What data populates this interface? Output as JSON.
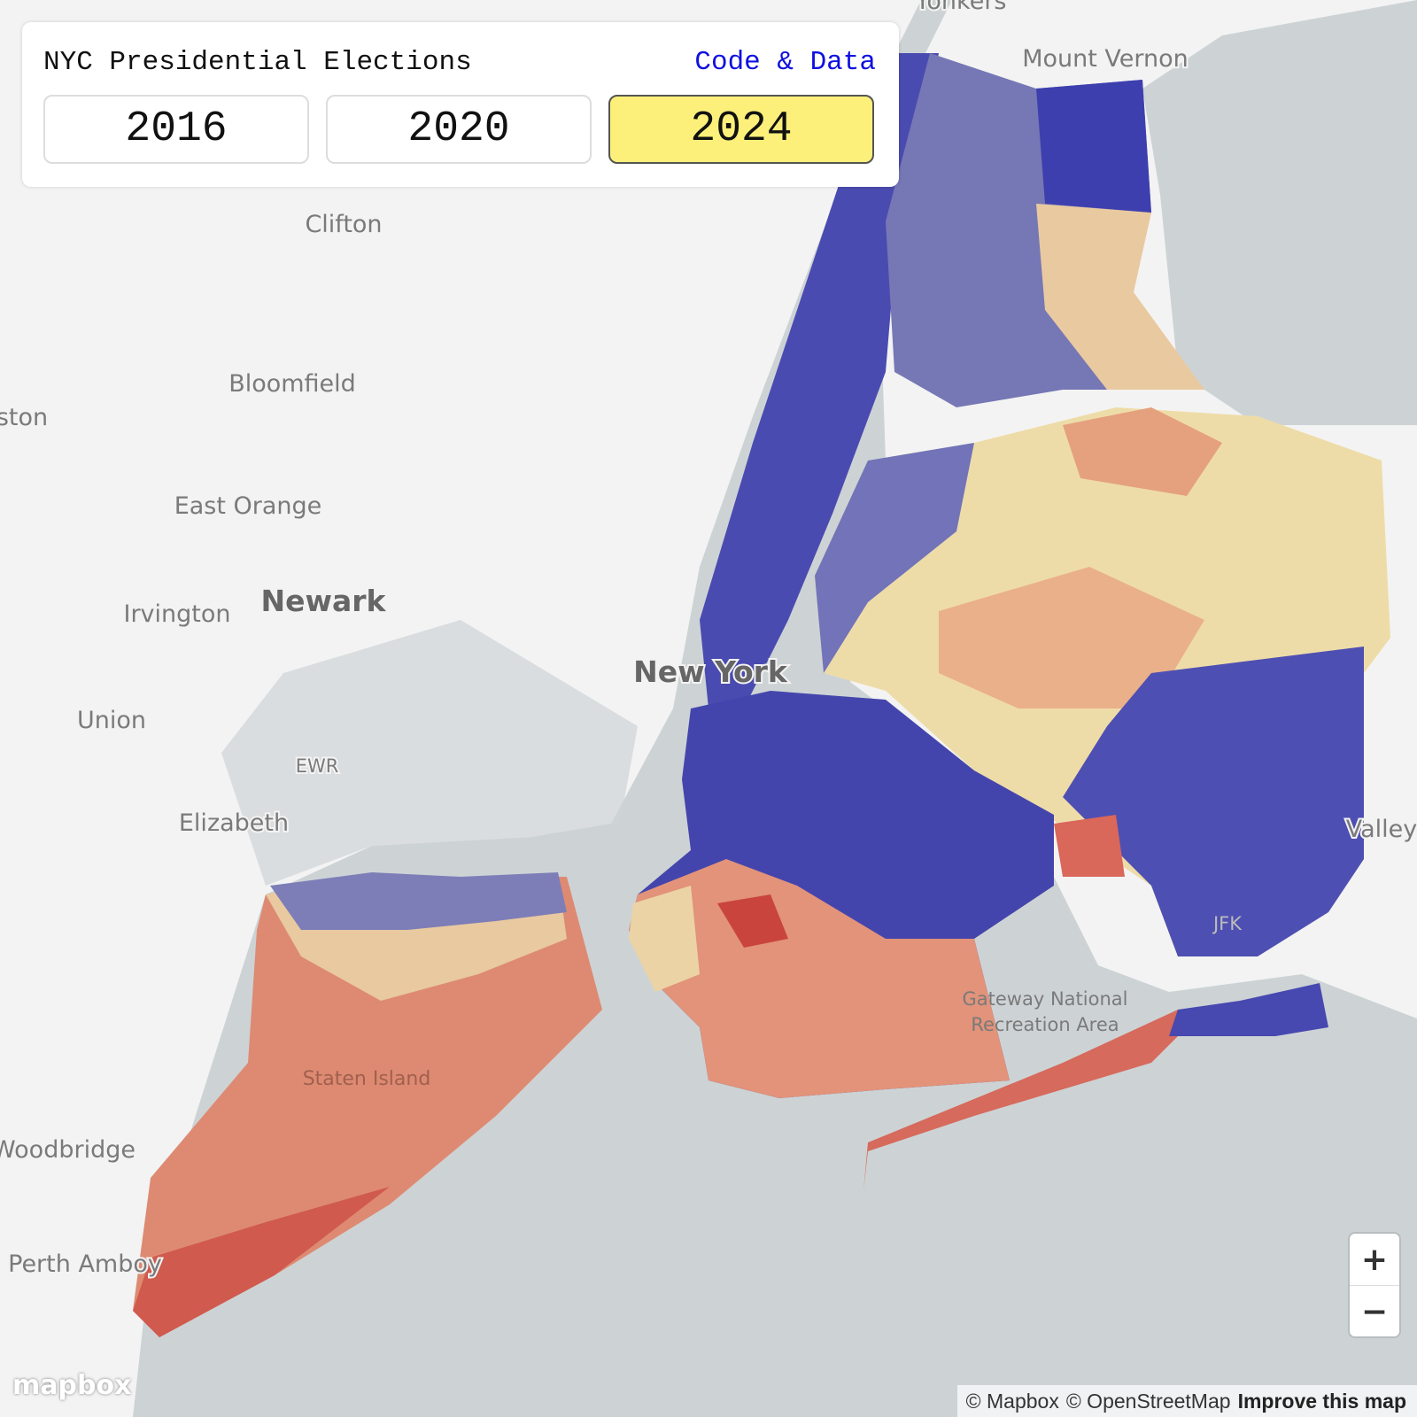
{
  "panel": {
    "title": "NYC Presidential Elections",
    "link": "Code & Data",
    "years": [
      "2016",
      "2020",
      "2024"
    ],
    "selected_year": "2024"
  },
  "map": {
    "labels": [
      "Yonkers",
      "Mount Vernon",
      "Clifton",
      "Bloomfield",
      "ston",
      "East Orange",
      "Newark",
      "Irvington",
      "New York",
      "Union",
      "EWR",
      "Elizabeth",
      "Staten Island",
      "Woodbridge",
      "Perth Amboy",
      "Gateway National",
      "Recreation Area",
      "JFK",
      "Valley"
    ]
  },
  "controls": {
    "zoom_in": "+",
    "zoom_out": "−"
  },
  "attribution": {
    "mapbox": "© Mapbox",
    "osm": "© OpenStreetMap",
    "improve": "Improve this map"
  },
  "logo": "mapbox"
}
